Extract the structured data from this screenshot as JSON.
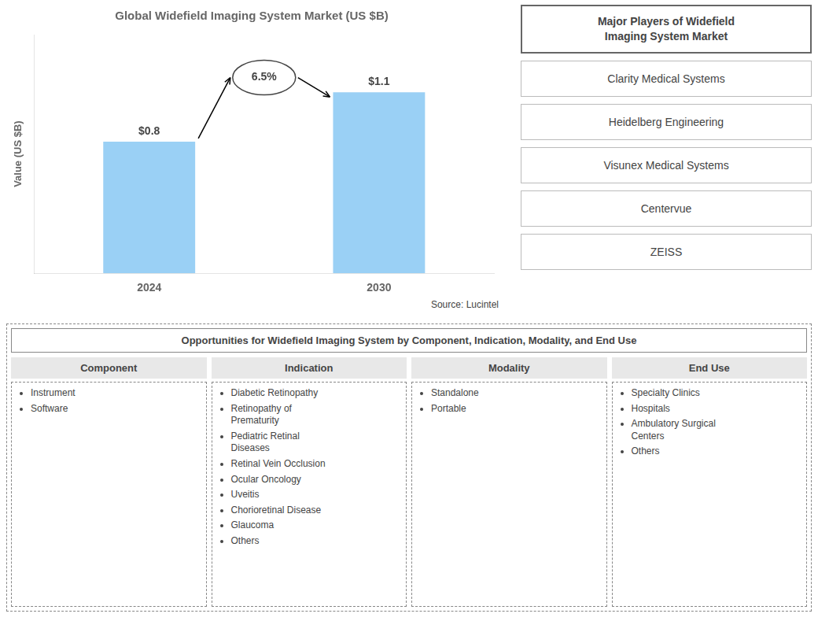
{
  "chart_data": [
    {
      "type": "bar",
      "title": "Global Widefield Imaging System Market (US $B)",
      "categories": [
        "2024",
        "2030"
      ],
      "values": [
        0.8,
        1.1
      ],
      "value_labels": [
        "$0.8",
        "$1.1"
      ],
      "data_labels": true,
      "ylabel": "Value (US $B)",
      "ylim": [
        0,
        1.45
      ],
      "tick_labels": "x",
      "grid": false,
      "annotations": [
        "6.5%",
        "Source: Lucintel"
      ]
    },
    {
      "type": "list",
      "title": "Major Players of Widefield\nImaging System Market",
      "annotations": [
        "Clarity Medical Systems",
        "Heidelberg Engineering",
        "Visunex Medical Systems",
        "Centervue",
        "ZEISS"
      ]
    },
    {
      "type": "table",
      "title": "Opportunities for Widefield Imaging System by Component, Indication, Modality, and End Use",
      "categories": [
        "Component",
        "Indication",
        "Modality",
        "End Use"
      ],
      "annotations": [
        [
          "Instrument",
          "Software"
        ],
        [
          "Diabetic Retinopathy",
          "Retinopathy of\nPrematurity",
          "Pediatric Retinal\nDiseases",
          "Retinal Vein Occlusion",
          "Ocular Oncology",
          "Uveitis",
          "Chorioretinal Disease",
          "Glaucoma",
          "Others"
        ],
        [
          "Standalone",
          "Portable"
        ],
        [
          "Specialty Clinics",
          "Hospitals",
          "Ambulatory Surgical\nCenters",
          "Others"
        ]
      ]
    }
  ]
}
